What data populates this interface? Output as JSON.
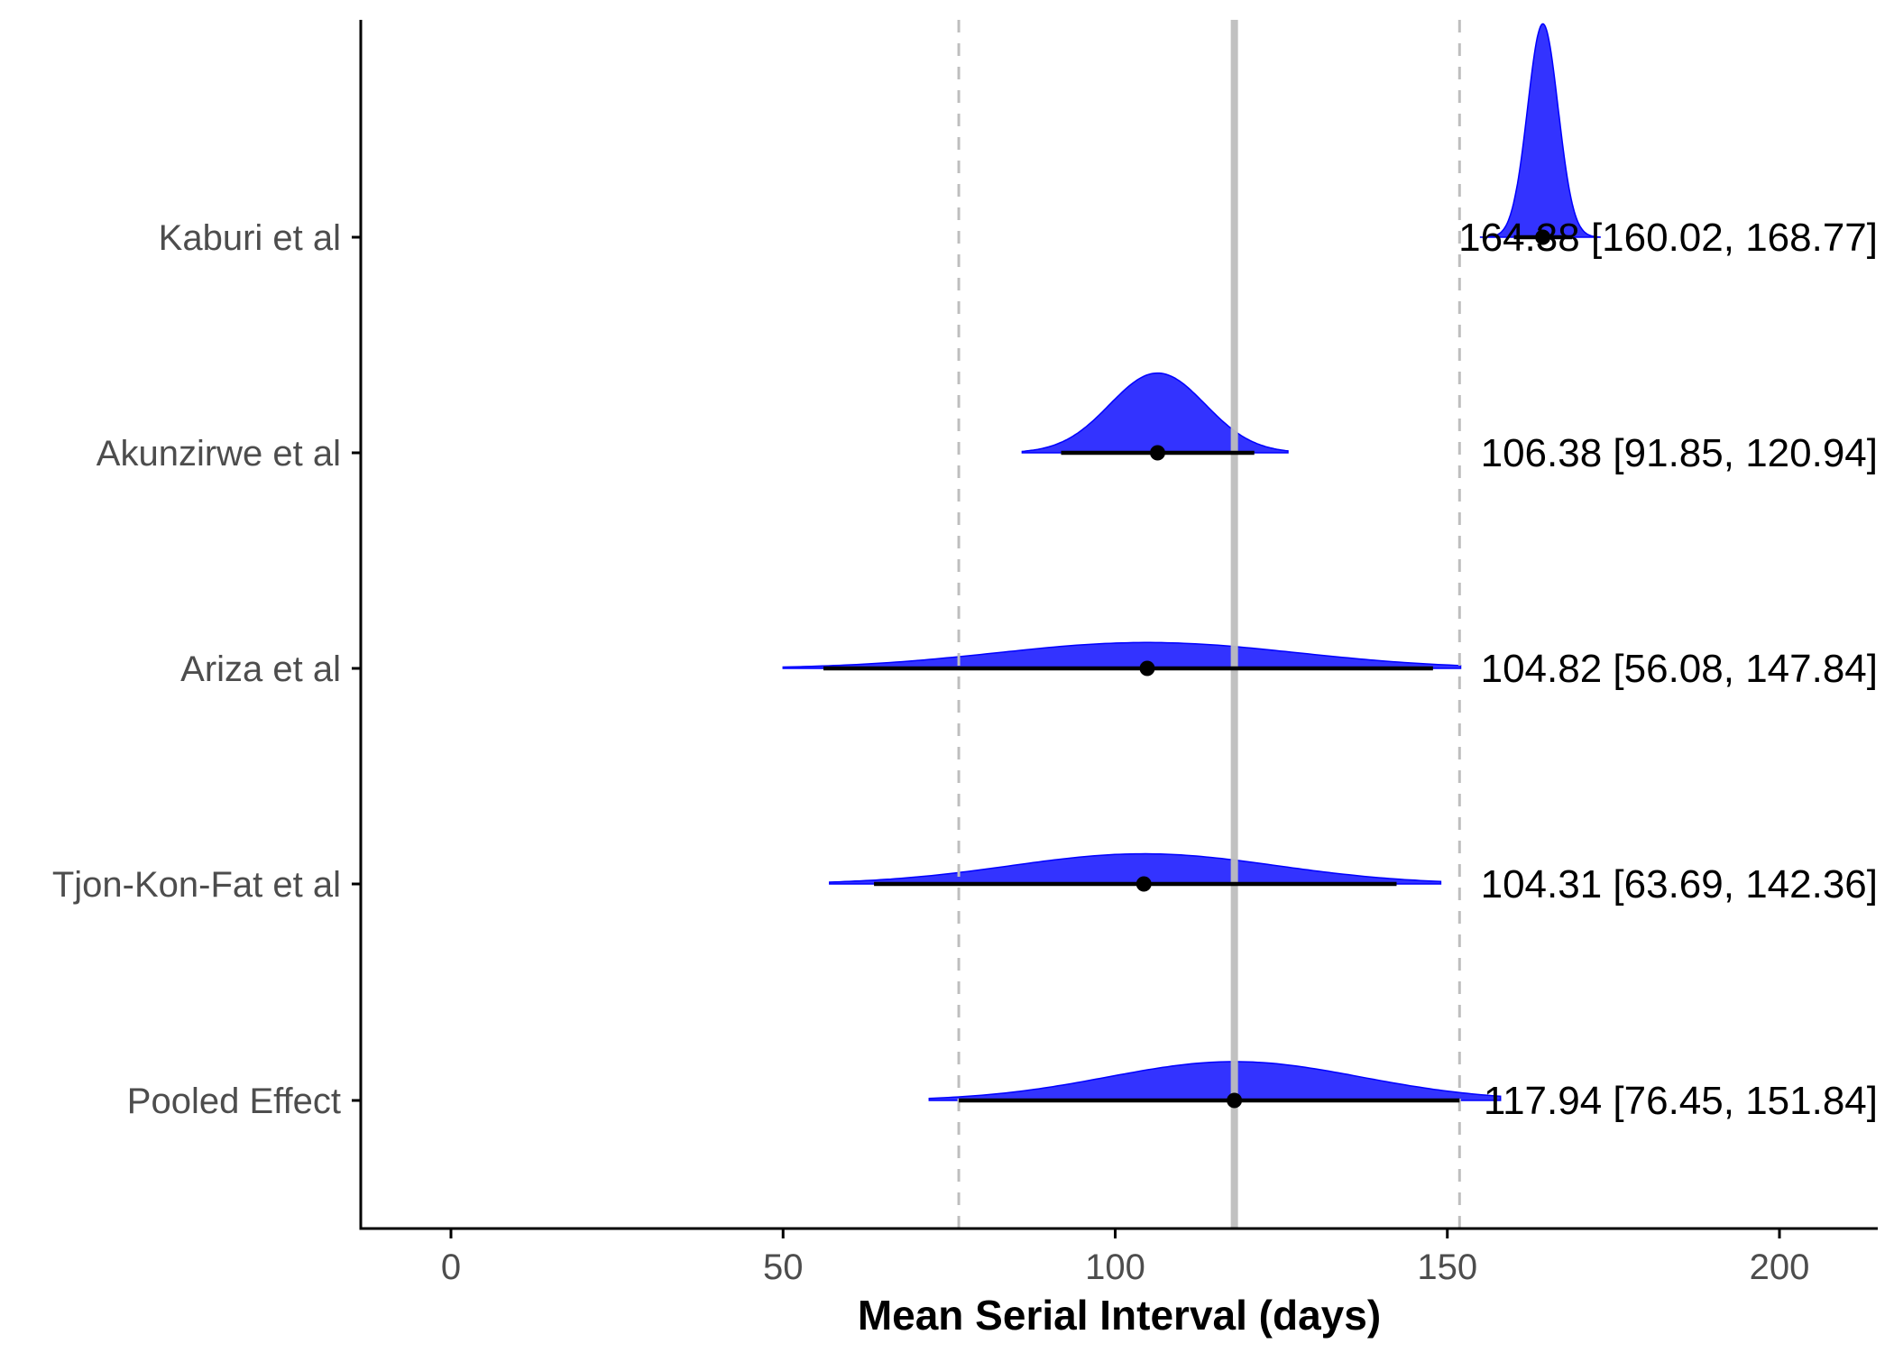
{
  "chart_data": {
    "type": "forest-density",
    "xlabel": "Mean Serial Interval (days)",
    "xlim": [
      -14,
      214
    ],
    "xticks": [
      0,
      50,
      100,
      150,
      200
    ],
    "colors": {
      "density": "#0000FF",
      "point": "#000000",
      "pooled_line": "#BEBEBE",
      "ci_line": "#BEBEBE",
      "axis": "#000000"
    },
    "pooled": {
      "mean": 117.94,
      "lower": 76.45,
      "upper": 151.84
    },
    "studies": [
      {
        "name": "Kaburi et al",
        "mean": 164.38,
        "lower": 160.02,
        "upper": 168.77,
        "label": "164.38 [160.02, 168.77]",
        "sd": 2.3,
        "range": [
          155,
          173
        ],
        "peak": 0.99
      },
      {
        "name": "Akunzirwe et al",
        "mean": 106.38,
        "lower": 91.85,
        "upper": 120.94,
        "label": "106.38 [91.85, 120.94]",
        "sd": 7.2,
        "range": [
          86,
          126
        ],
        "peak": 0.37
      },
      {
        "name": "Ariza et al",
        "mean": 104.82,
        "lower": 56.08,
        "upper": 147.84,
        "label": "104.82 [56.08, 147.84]",
        "sd": 22.5,
        "range": [
          50,
          152
        ],
        "peak": 0.12
      },
      {
        "name": "Tjon-Kon-Fat et al",
        "mean": 104.31,
        "lower": 63.69,
        "upper": 142.36,
        "label": "104.31 [63.69, 142.36]",
        "sd": 20.0,
        "range": [
          57,
          149
        ],
        "peak": 0.14
      },
      {
        "name": "Pooled Effect",
        "mean": 117.94,
        "lower": 76.45,
        "upper": 151.84,
        "label": "117.94 [76.45, 151.84]",
        "sd": 19.0,
        "range": [
          72,
          158
        ],
        "peak": 0.18
      }
    ]
  }
}
